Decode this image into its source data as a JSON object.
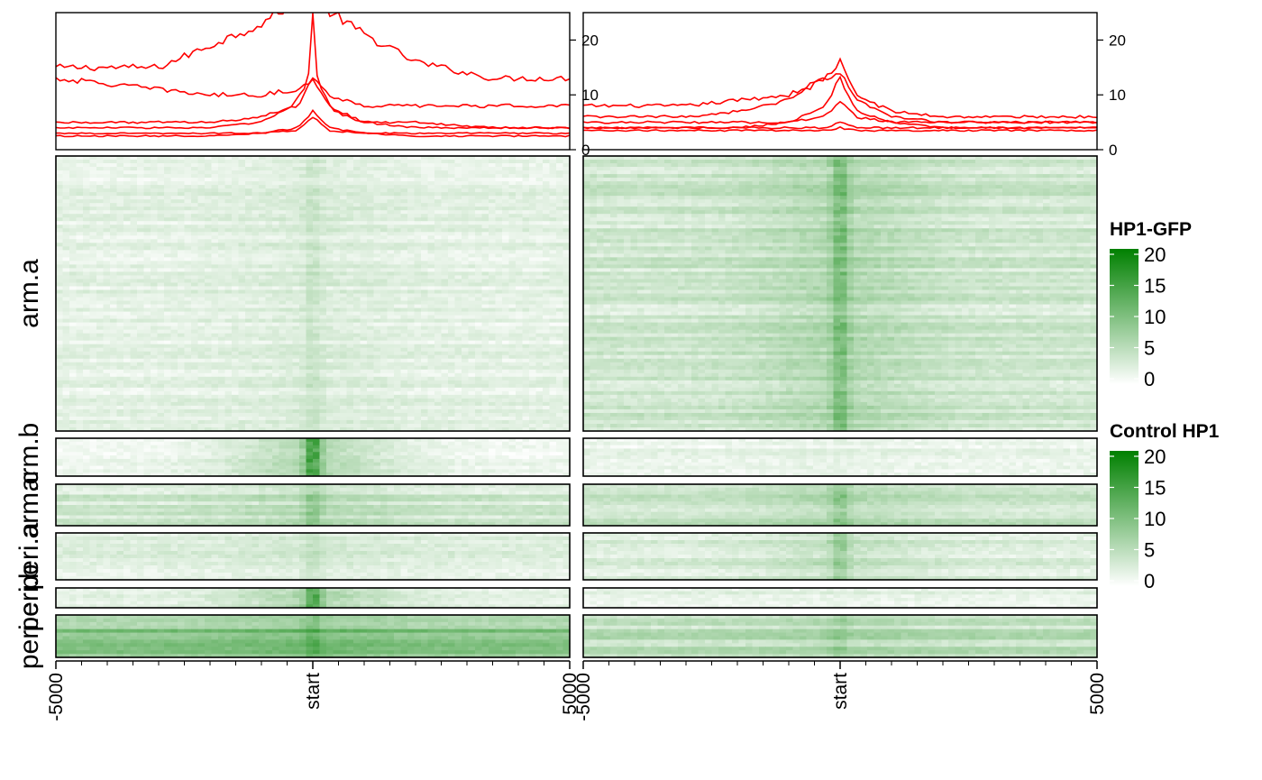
{
  "chart_data": {
    "type": "heatmap",
    "profile_plot": {
      "type": "line",
      "color": "#FF0000",
      "y_ticks": [
        0,
        10,
        20
      ],
      "ylim": [
        0,
        25
      ],
      "x_range": [
        -5000,
        5000
      ],
      "panels": [
        {
          "name": "HP1-GFP",
          "lines": [
            {
              "x": [
                -5000,
                -3000,
                -2000,
                -1000,
                -200,
                0,
                200,
                1000,
                2000,
                3500,
                5000
              ],
              "y": [
                15,
                15,
                19,
                23,
                28,
                34,
                26,
                21,
                16,
                13,
                13
              ]
            },
            {
              "x": [
                -5000,
                -3000,
                -2000,
                -1000,
                -300,
                0,
                300,
                1000,
                2000,
                3500,
                5000
              ],
              "y": [
                13,
                11,
                10,
                10,
                11,
                13,
                10,
                8,
                8,
                8,
                8
              ]
            },
            {
              "x": [
                -5000,
                -3000,
                -2000,
                -1000,
                -400,
                -100,
                0,
                100,
                400,
                1000,
                2000,
                3500,
                5000
              ],
              "y": [
                4,
                4,
                4,
                5,
                8,
                12,
                24,
                12,
                7,
                5,
                5,
                4,
                4
              ]
            },
            {
              "x": [
                -5000,
                -3000,
                -2000,
                -1000,
                -300,
                0,
                300,
                1000,
                2000,
                3500,
                5000
              ],
              "y": [
                5,
                5,
                5,
                6,
                8,
                13,
                8,
                5,
                4,
                4,
                4
              ]
            },
            {
              "x": [
                -5000,
                -3000,
                -2000,
                -1000,
                -300,
                0,
                300,
                1000,
                2000,
                3500,
                5000
              ],
              "y": [
                3,
                3,
                3,
                3,
                4,
                7,
                4,
                3,
                3,
                3,
                3
              ]
            },
            {
              "x": [
                -5000,
                -3000,
                -2000,
                -1000,
                -300,
                0,
                300,
                1000,
                2000,
                3500,
                5000
              ],
              "y": [
                2.5,
                2.5,
                2.5,
                3,
                3.5,
                6,
                3.5,
                3,
                2.5,
                2.5,
                2.5
              ]
            }
          ]
        },
        {
          "name": "Control HP1",
          "lines": [
            {
              "x": [
                -5000,
                -3000,
                -2000,
                -1000,
                -300,
                0,
                300,
                1000,
                2000,
                3500,
                5000
              ],
              "y": [
                8,
                8,
                9,
                10,
                13,
                16,
                10,
                7,
                6,
                6,
                6
              ]
            },
            {
              "x": [
                -5000,
                -3000,
                -2000,
                -1000,
                -300,
                0,
                300,
                1000,
                2000,
                3500,
                5000
              ],
              "y": [
                6,
                6,
                7,
                9,
                13,
                14,
                9,
                6,
                5,
                5,
                5
              ]
            },
            {
              "x": [
                -5000,
                -3000,
                -2000,
                -1000,
                -300,
                0,
                300,
                1000,
                2000,
                3500,
                5000
              ],
              "y": [
                4,
                4,
                4,
                5,
                8,
                13,
                7,
                5,
                4,
                4,
                4
              ]
            },
            {
              "x": [
                -5000,
                -3000,
                -2000,
                -1000,
                -300,
                0,
                300,
                1000,
                2000,
                3500,
                5000
              ],
              "y": [
                5,
                5,
                5,
                5,
                6,
                9,
                6,
                5,
                5,
                5,
                5
              ]
            },
            {
              "x": [
                -5000,
                -3000,
                -2000,
                -1000,
                -300,
                0,
                300,
                1000,
                2000,
                3500,
                5000
              ],
              "y": [
                4,
                4,
                4,
                4,
                4,
                5,
                4,
                4,
                4,
                4,
                4
              ]
            },
            {
              "x": [
                -5000,
                -3000,
                -2000,
                -1000,
                -300,
                0,
                300,
                1000,
                2000,
                3500,
                5000
              ],
              "y": [
                3.5,
                3.5,
                3.5,
                3.5,
                3.5,
                4,
                3.5,
                3.5,
                3.5,
                3.5,
                3.5
              ]
            }
          ]
        }
      ]
    },
    "heatmaps": {
      "x_tick_labels": [
        "-5000",
        "start",
        "5000"
      ],
      "color_low": "#FFFFFF",
      "color_high": "#008000",
      "row_groups": [
        {
          "label": "arm.a",
          "panel_intensity": [
            [
              0.1,
              0.22
            ],
            [
              0.18,
              0.55
            ]
          ]
        },
        {
          "label": "arm.b",
          "panel_intensity": [
            [
              0.06,
              0.8
            ],
            [
              0.08,
              0.12
            ]
          ]
        },
        {
          "label": "arm.c",
          "panel_intensity": [
            [
              0.18,
              0.45
            ],
            [
              0.22,
              0.5
            ]
          ]
        },
        {
          "label": "peri.a",
          "panel_intensity": [
            [
              0.12,
              0.25
            ],
            [
              0.14,
              0.45
            ]
          ]
        },
        {
          "label": "peri.b",
          "panel_intensity": [
            [
              0.1,
              0.75
            ],
            [
              0.1,
              0.12
            ]
          ]
        },
        {
          "label": "peri.c",
          "panel_intensity": [
            [
              0.4,
              0.6
            ],
            [
              0.25,
              0.4
            ]
          ]
        }
      ]
    },
    "legends": [
      {
        "title": "HP1-GFP",
        "ticks": [
          0,
          5,
          10,
          15,
          20
        ],
        "color_low": "#FFFFFF",
        "color_high": "#008000"
      },
      {
        "title": "Control HP1",
        "ticks": [
          0,
          5,
          10,
          15,
          20
        ],
        "color_low": "#FFFFFF",
        "color_high": "#008000"
      }
    ]
  }
}
